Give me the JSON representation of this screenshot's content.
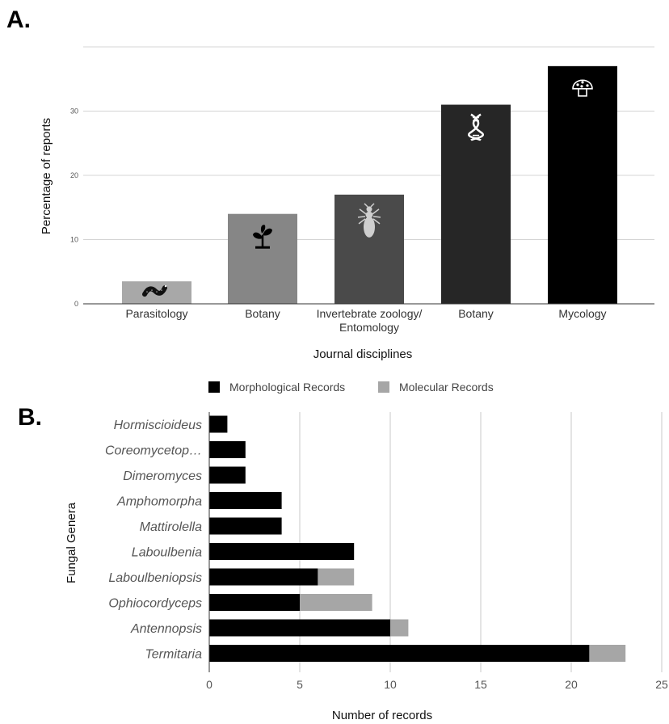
{
  "chart_data": [
    {
      "panel": "A.",
      "type": "bar",
      "categories": [
        "Parasitology",
        "Botany",
        "Invertebrate zoology/ Entomology",
        "Botany",
        "Mycology"
      ],
      "category_lines": [
        [
          "Parasitology"
        ],
        [
          "Botany"
        ],
        [
          "Invertebrate zoology/",
          "Entomology"
        ],
        [
          "Botany"
        ],
        [
          "Mycology"
        ]
      ],
      "values": [
        3.5,
        14,
        17,
        31,
        37
      ],
      "bar_colors": [
        "#a8a8a8",
        "#868686",
        "#4a4a4a",
        "#262626",
        "#000000"
      ],
      "bar_icons": [
        "worm-icon",
        "plant-sprout-icon",
        "termite-icon",
        "dna-helix-icon",
        "mushroom-icon"
      ],
      "xlabel": "Journal disciplines",
      "ylabel": "Percentage of reports",
      "ylim": [
        0,
        40
      ],
      "yticks": [
        0,
        10,
        20,
        30
      ],
      "grid": true
    },
    {
      "panel": "B.",
      "type": "bar",
      "orientation": "horizontal",
      "stacked": true,
      "categories": [
        "Hormiscioideus",
        "Coreomycetop…",
        "Dimeromyces",
        "Amphomorpha",
        "Mattirolella",
        "Laboulbenia",
        "Laboulbeniopsis",
        "Ophiocordyceps",
        "Antennopsis",
        "Termitaria"
      ],
      "series": [
        {
          "name": "Morphological Records",
          "color": "#000000",
          "values": [
            1,
            2,
            2,
            4,
            4,
            8,
            6,
            5,
            10,
            21
          ]
        },
        {
          "name": "Molecular Records",
          "color": "#a6a6a6",
          "values": [
            0,
            0,
            0,
            0,
            0,
            0,
            2,
            4,
            1,
            2
          ]
        }
      ],
      "xlabel": "Number of records",
      "ylabel": "Fungal Genera",
      "xlim": [
        0,
        25
      ],
      "xticks": [
        0,
        5,
        10,
        15,
        20,
        25
      ],
      "legend_position": "top",
      "grid": true
    }
  ]
}
